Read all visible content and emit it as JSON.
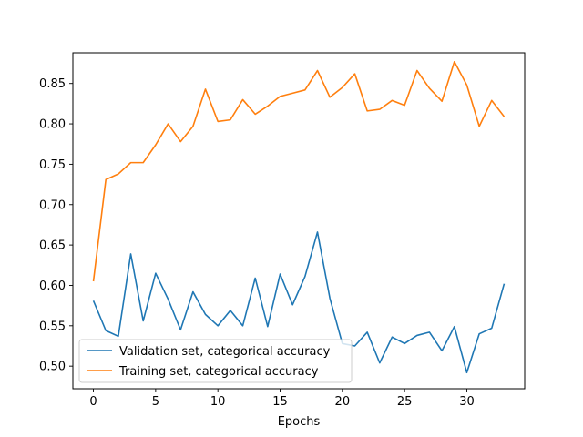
{
  "chart_data": {
    "type": "line",
    "title": "",
    "xlabel": "Epochs",
    "ylabel": "",
    "xlim": [
      -1.65,
      34.65
    ],
    "ylim": [
      0.472,
      0.888
    ],
    "x_ticks": [
      0,
      5,
      10,
      15,
      20,
      25,
      30
    ],
    "y_ticks": [
      0.5,
      0.55,
      0.6,
      0.65,
      0.7,
      0.75,
      0.8,
      0.85
    ],
    "grid": false,
    "legend_position": "lower-left",
    "x": [
      0,
      1,
      2,
      3,
      4,
      5,
      6,
      7,
      8,
      9,
      10,
      11,
      12,
      13,
      14,
      15,
      16,
      17,
      18,
      19,
      20,
      21,
      22,
      23,
      24,
      25,
      26,
      27,
      28,
      29,
      30,
      31,
      32,
      33
    ],
    "series": [
      {
        "name": "Validation set, categorical accuracy",
        "color": "#1f77b4",
        "values": [
          0.581,
          0.544,
          0.537,
          0.639,
          0.556,
          0.615,
          0.583,
          0.545,
          0.592,
          0.564,
          0.55,
          0.569,
          0.55,
          0.609,
          0.549,
          0.614,
          0.576,
          0.611,
          0.666,
          0.584,
          0.528,
          0.525,
          0.542,
          0.504,
          0.536,
          0.528,
          0.538,
          0.542,
          0.519,
          0.549,
          0.492,
          0.54,
          0.547,
          0.602
        ]
      },
      {
        "name": "Training set, categorical accuracy",
        "color": "#ff7f0e",
        "values": [
          0.605,
          0.731,
          0.738,
          0.752,
          0.752,
          0.774,
          0.8,
          0.778,
          0.797,
          0.843,
          0.803,
          0.805,
          0.83,
          0.812,
          0.822,
          0.834,
          0.838,
          0.842,
          0.866,
          0.833,
          0.845,
          0.862,
          0.816,
          0.818,
          0.829,
          0.823,
          0.866,
          0.844,
          0.828,
          0.877,
          0.848,
          0.797,
          0.829,
          0.809
        ]
      }
    ]
  }
}
